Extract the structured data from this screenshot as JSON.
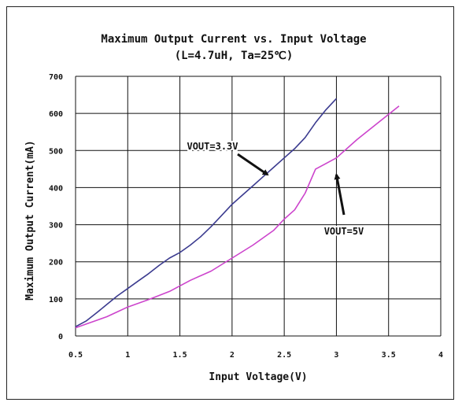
{
  "chart_data": {
    "type": "line",
    "title": "Maximum Output Current vs. Input Voltage",
    "subtitle": "(L=4.7uH, Ta=25℃)",
    "xlabel": "Input Voltage(V)",
    "ylabel": "Maximum Output Current(mA)",
    "xlim": [
      0.5,
      4
    ],
    "ylim": [
      0,
      700
    ],
    "x_ticks": [
      "0.5",
      "1",
      "1.5",
      "2",
      "2.5",
      "3",
      "3.5",
      "4"
    ],
    "y_ticks": [
      "0",
      "100",
      "200",
      "300",
      "400",
      "500",
      "600",
      "700"
    ],
    "grid": true,
    "series": [
      {
        "name": "VOUT=3.3V",
        "color": "#3b3b8f",
        "x": [
          0.5,
          0.6,
          0.7,
          0.8,
          0.9,
          1.0,
          1.1,
          1.2,
          1.3,
          1.4,
          1.5,
          1.6,
          1.7,
          1.8,
          1.9,
          2.0,
          2.1,
          2.2,
          2.3,
          2.4,
          2.5,
          2.6,
          2.7,
          2.8,
          2.9,
          3.0
        ],
        "y": [
          25,
          40,
          62,
          85,
          108,
          128,
          148,
          168,
          190,
          210,
          225,
          245,
          268,
          295,
          325,
          355,
          380,
          405,
          430,
          455,
          480,
          505,
          535,
          575,
          610,
          640
        ]
      },
      {
        "name": "VOUT=5V",
        "color": "#cc44cc",
        "x": [
          0.5,
          0.6,
          0.7,
          0.8,
          0.9,
          1.0,
          1.2,
          1.4,
          1.6,
          1.8,
          2.0,
          2.2,
          2.4,
          2.5,
          2.6,
          2.7,
          2.8,
          2.9,
          3.0,
          3.2,
          3.4,
          3.6
        ],
        "y": [
          22,
          32,
          42,
          52,
          65,
          78,
          98,
          120,
          150,
          175,
          210,
          245,
          285,
          315,
          340,
          385,
          450,
          465,
          480,
          530,
          575,
          620
        ]
      }
    ],
    "annotations": [
      {
        "text": "VOUT=3.3V",
        "series": "VOUT=3.3V"
      },
      {
        "text": "VOUT=5V",
        "series": "VOUT=5V"
      }
    ]
  }
}
